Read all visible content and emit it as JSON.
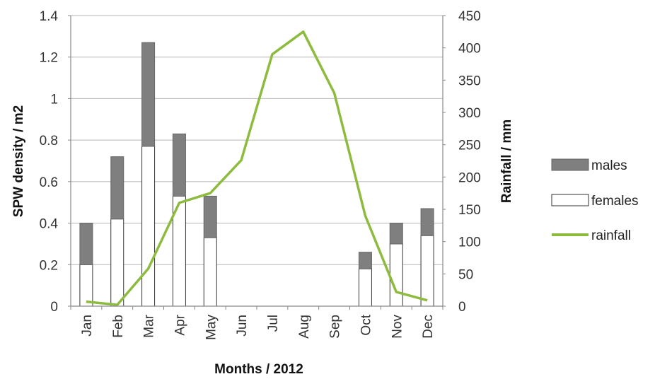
{
  "chart_data": {
    "type": "bar",
    "xlabel": "Months / 2012",
    "ylabel": "SPW density / m2",
    "y2label": "Rainfall / mm",
    "categories": [
      "Jan",
      "Feb",
      "Mar",
      "Apr",
      "May",
      "Jun",
      "Jul",
      "Aug",
      "Sep",
      "Oct",
      "Nov",
      "Dec"
    ],
    "ylim": [
      0,
      1.4
    ],
    "y_ticks": [
      "0",
      "0.2",
      "0.4",
      "0.6",
      "0.8",
      "1",
      "1.2",
      "1.4"
    ],
    "y2lim": [
      0,
      450
    ],
    "y2_ticks": [
      "0",
      "50",
      "100",
      "150",
      "200",
      "250",
      "300",
      "350",
      "400",
      "450"
    ],
    "stacked": true,
    "grid": true,
    "legend_position": "right",
    "series": [
      {
        "name": "females",
        "type": "bar",
        "color": "#ffffff",
        "values": [
          0.2,
          0.42,
          0.77,
          0.53,
          0.33,
          null,
          null,
          null,
          null,
          0.18,
          0.3,
          0.34
        ]
      },
      {
        "name": "males",
        "type": "bar",
        "color": "#7f7f7f",
        "values": [
          0.2,
          0.3,
          0.5,
          0.3,
          0.2,
          null,
          null,
          null,
          null,
          0.08,
          0.1,
          0.13
        ]
      },
      {
        "name": "rainfall",
        "type": "line",
        "axis": "right",
        "color": "#8dbb3e",
        "values": [
          7,
          2,
          58,
          160,
          175,
          226,
          390,
          425,
          330,
          140,
          22,
          9
        ]
      }
    ],
    "legend": [
      "males",
      "females",
      "rainfall"
    ]
  }
}
